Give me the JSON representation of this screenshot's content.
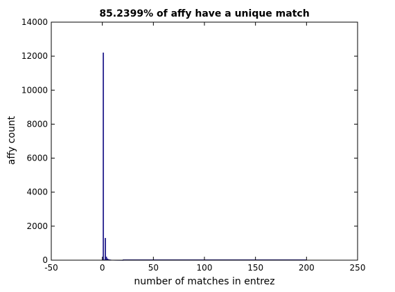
{
  "chart_data": {
    "type": "bar",
    "title": "85.2399% of affy have a unique match",
    "xlabel": "number of matches in entrez",
    "ylabel": "affy count",
    "xlim": [
      -50,
      250
    ],
    "ylim": [
      0,
      14000
    ],
    "xticks": [
      -50,
      0,
      50,
      100,
      150,
      200,
      250
    ],
    "yticks": [
      0,
      2000,
      4000,
      6000,
      8000,
      10000,
      12000,
      14000
    ],
    "grid": false,
    "bar_color": "#1f1a8a",
    "bin_width": 1,
    "bars": [
      {
        "x": 1,
        "y": 12200
      },
      {
        "x": 2,
        "y": 30
      },
      {
        "x": 3,
        "y": 1300
      },
      {
        "x": 4,
        "y": 200
      },
      {
        "x": 5,
        "y": 90
      },
      {
        "x": 6,
        "y": 55
      },
      {
        "x": 7,
        "y": 35
      },
      {
        "x": 8,
        "y": 25
      },
      {
        "x": 9,
        "y": 15
      },
      {
        "x": 10,
        "y": 12
      },
      {
        "x": 11,
        "y": 10
      },
      {
        "x": 12,
        "y": 8
      },
      {
        "x": 13,
        "y": 7
      },
      {
        "x": 14,
        "y": 6
      },
      {
        "x": 15,
        "y": 5
      },
      {
        "x": 16,
        "y": 5
      },
      {
        "x": 17,
        "y": 4
      },
      {
        "x": 18,
        "y": 4
      },
      {
        "x": 19,
        "y": 3
      },
      {
        "x": 20,
        "y": 3
      }
    ],
    "tail": {
      "x_start": 20,
      "x_end": 200,
      "y": 2
    }
  }
}
